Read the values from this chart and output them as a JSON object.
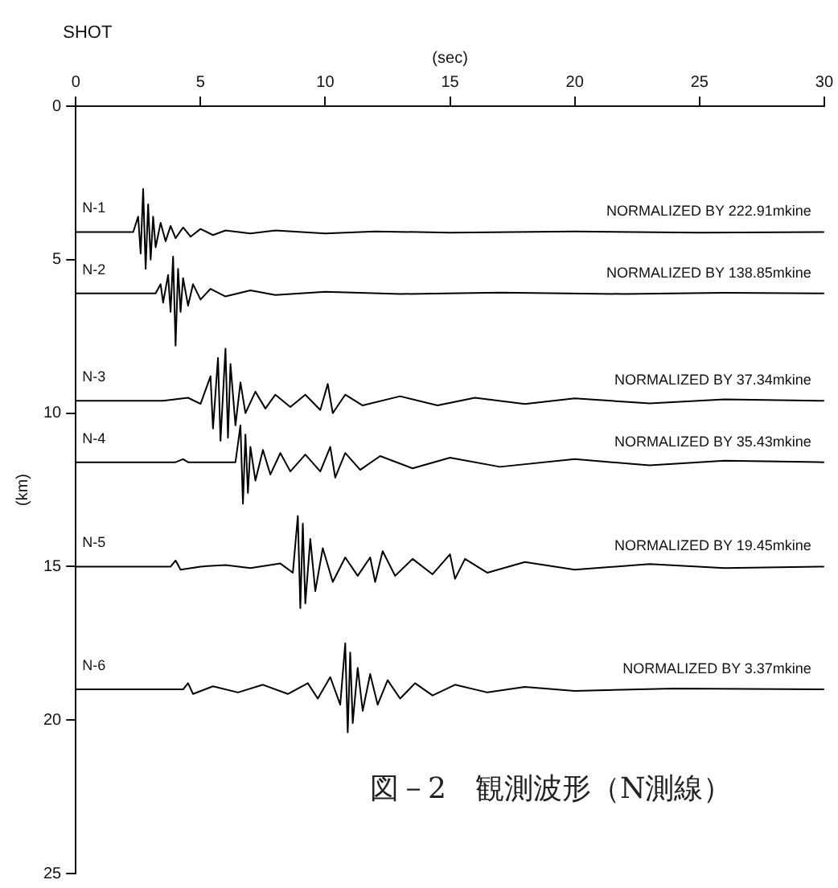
{
  "chart_data": {
    "type": "line",
    "title": "図－2　観測波形（N測線）",
    "xlabel": "(sec)",
    "ylabel": "(km)",
    "xlim": [
      0,
      30
    ],
    "xticks": [
      0,
      5,
      10,
      15,
      20,
      25,
      30
    ],
    "ylim": [
      25,
      0
    ],
    "yticks": [
      0,
      5,
      10,
      15,
      20,
      25
    ],
    "grid": false,
    "legend": false,
    "marker": "none",
    "line_style": "solid",
    "series": [
      {
        "name": "N-1",
        "color": "#000000",
        "x": [
          0,
          2.3,
          2.5,
          2.6,
          2.7,
          2.8,
          2.9,
          3.0,
          3.1,
          3.2,
          3.4,
          3.6,
          3.8,
          4.0,
          4.3,
          4.6,
          5.0,
          5.5,
          6.0,
          7,
          8,
          10,
          12,
          15,
          20,
          25,
          30
        ],
        "values": [
          4.1,
          4.1,
          3.6,
          4.8,
          2.7,
          5.3,
          3.2,
          5.0,
          3.6,
          4.6,
          3.8,
          4.4,
          3.9,
          4.3,
          3.95,
          4.25,
          4.0,
          4.2,
          4.05,
          4.15,
          4.05,
          4.15,
          4.08,
          4.12,
          4.08,
          4.12,
          4.1
        ]
      },
      {
        "name": "N-2",
        "color": "#000000",
        "x": [
          0,
          3.2,
          3.4,
          3.5,
          3.7,
          3.8,
          3.9,
          4.0,
          4.1,
          4.2,
          4.3,
          4.5,
          4.7,
          5.0,
          5.4,
          6,
          7,
          8,
          10,
          13,
          17,
          22,
          26,
          30
        ],
        "values": [
          6.1,
          6.1,
          5.8,
          6.4,
          5.5,
          6.7,
          4.9,
          7.8,
          5.3,
          6.7,
          5.6,
          6.5,
          5.8,
          6.3,
          5.95,
          6.2,
          6.0,
          6.15,
          6.05,
          6.12,
          6.07,
          6.12,
          6.08,
          6.1
        ]
      },
      {
        "name": "N-3",
        "color": "#000000",
        "x": [
          0,
          3.5,
          4.5,
          5.0,
          5.4,
          5.5,
          5.7,
          5.8,
          6.0,
          6.1,
          6.2,
          6.4,
          6.6,
          6.8,
          7.2,
          7.6,
          8,
          8.6,
          9.2,
          9.8,
          10.1,
          10.3,
          10.8,
          11.5,
          13,
          14.5,
          16,
          18,
          20,
          23,
          26,
          30
        ],
        "values": [
          9.6,
          9.6,
          9.5,
          9.7,
          8.8,
          10.5,
          8.2,
          10.9,
          7.9,
          10.8,
          8.4,
          10.4,
          9.0,
          10.0,
          9.3,
          9.85,
          9.4,
          9.8,
          9.4,
          9.9,
          9.05,
          10.0,
          9.4,
          9.75,
          9.45,
          9.75,
          9.5,
          9.7,
          9.52,
          9.68,
          9.55,
          9.6
        ]
      },
      {
        "name": "N-4",
        "color": "#000000",
        "x": [
          0,
          4,
          4.3,
          4.5,
          6.4,
          6.6,
          6.7,
          6.8,
          6.9,
          7.0,
          7.2,
          7.5,
          7.8,
          8.2,
          8.6,
          9.2,
          9.8,
          10.2,
          10.4,
          10.8,
          11.4,
          12.2,
          13.5,
          15,
          17,
          20,
          23,
          26,
          30
        ],
        "values": [
          11.6,
          11.6,
          11.5,
          11.6,
          11.6,
          10.4,
          12.95,
          10.7,
          12.6,
          11.1,
          12.2,
          11.2,
          12.0,
          11.3,
          11.9,
          11.35,
          11.9,
          11.1,
          12.1,
          11.3,
          11.85,
          11.4,
          11.8,
          11.45,
          11.75,
          11.5,
          11.7,
          11.55,
          11.6
        ]
      },
      {
        "name": "N-5",
        "color": "#000000",
        "x": [
          0,
          3.8,
          4.0,
          4.2,
          5,
          6,
          7,
          8.2,
          8.7,
          8.9,
          9.0,
          9.1,
          9.2,
          9.4,
          9.6,
          9.9,
          10.3,
          10.8,
          11.3,
          11.8,
          12.0,
          12.3,
          12.8,
          13.5,
          14.3,
          15.0,
          15.2,
          15.6,
          16.5,
          18,
          20,
          23,
          26,
          30
        ],
        "values": [
          15,
          15,
          14.8,
          15.1,
          15,
          14.95,
          15.05,
          14.9,
          15.2,
          13.35,
          16.35,
          13.6,
          16.2,
          14.1,
          15.8,
          14.4,
          15.5,
          14.7,
          15.3,
          14.7,
          15.5,
          14.5,
          15.3,
          14.75,
          15.25,
          14.6,
          15.4,
          14.75,
          15.2,
          14.85,
          15.1,
          14.92,
          15.05,
          15
        ]
      },
      {
        "name": "N-6",
        "color": "#000000",
        "x": [
          0,
          4.3,
          4.5,
          4.7,
          5.5,
          6.5,
          7.5,
          8.5,
          9.3,
          9.7,
          10.2,
          10.6,
          10.8,
          10.9,
          11.0,
          11.1,
          11.3,
          11.5,
          11.8,
          12.1,
          12.5,
          13,
          13.6,
          14.3,
          15.2,
          16.5,
          18,
          20,
          24,
          30
        ],
        "values": [
          19,
          19,
          18.8,
          19.15,
          18.9,
          19.1,
          18.85,
          19.15,
          18.8,
          19.3,
          18.6,
          19.5,
          17.5,
          20.4,
          17.8,
          20.1,
          18.3,
          19.7,
          18.5,
          19.5,
          18.7,
          19.3,
          18.8,
          19.2,
          18.85,
          19.1,
          18.92,
          19.05,
          18.97,
          19
        ]
      }
    ],
    "annotations": [
      "SHOT",
      "NORMALIZED BY 222.91mkine",
      "NORMALIZED BY 138.85mkine",
      "NORMALIZED BY 37.34mkine",
      "NORMALIZED BY 35.43mkine",
      "NORMALIZED BY 19.45mkine",
      "NORMALIZED BY 3.37mkine"
    ]
  }
}
